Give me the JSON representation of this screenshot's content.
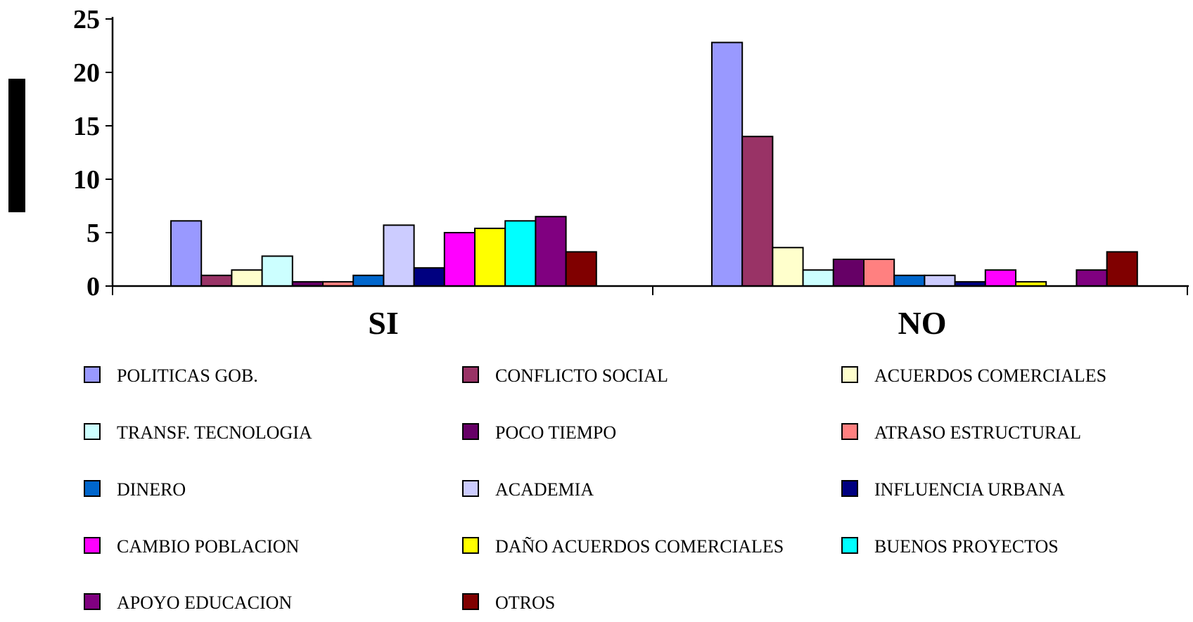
{
  "chart_data": {
    "type": "bar",
    "title": "",
    "xlabel": "",
    "ylabel": "",
    "ylim": [
      0,
      25
    ],
    "yticks": [
      "0",
      "5",
      "10",
      "15",
      "20",
      "25"
    ],
    "categories": [
      "SI",
      "NO"
    ],
    "legend_position": "bottom",
    "grid": false,
    "series": [
      {
        "name": "POLITICAS GOB.",
        "color": "#9999FF",
        "values": [
          6.1,
          22.8
        ]
      },
      {
        "name": "CONFLICTO SOCIAL",
        "color": "#993366",
        "values": [
          1.0,
          14.0
        ]
      },
      {
        "name": "ACUERDOS COMERCIALES",
        "color": "#FFFFCC",
        "values": [
          1.5,
          3.6
        ]
      },
      {
        "name": "TRANSF. TECNOLOGIA",
        "color": "#CCFFFF",
        "values": [
          2.8,
          1.5
        ]
      },
      {
        "name": "POCO TIEMPO",
        "color": "#660066",
        "values": [
          0.4,
          2.5
        ]
      },
      {
        "name": "ATRASO ESTRUCTURAL",
        "color": "#FF8080",
        "values": [
          0.4,
          2.5
        ]
      },
      {
        "name": "DINERO",
        "color": "#0066CC",
        "values": [
          1.0,
          1.0
        ]
      },
      {
        "name": "ACADEMIA",
        "color": "#CCCCFF",
        "values": [
          5.7,
          1.0
        ]
      },
      {
        "name": "INFLUENCIA URBANA",
        "color": "#000080",
        "values": [
          1.7,
          0.4
        ]
      },
      {
        "name": "CAMBIO POBLACION",
        "color": "#FF00FF",
        "values": [
          5.0,
          1.5
        ]
      },
      {
        "name": "DAÑO ACUERDOS COMERCIALES",
        "color": "#FFFF00",
        "values": [
          5.4,
          0.4
        ]
      },
      {
        "name": "BUENOS PROYECTOS",
        "color": "#00FFFF",
        "values": [
          6.1,
          0
        ]
      },
      {
        "name": "APOYO EDUCACION",
        "color": "#800080",
        "values": [
          6.5,
          1.5
        ]
      },
      {
        "name": "OTROS",
        "color": "#800000",
        "values": [
          3.2,
          3.2
        ]
      }
    ]
  }
}
